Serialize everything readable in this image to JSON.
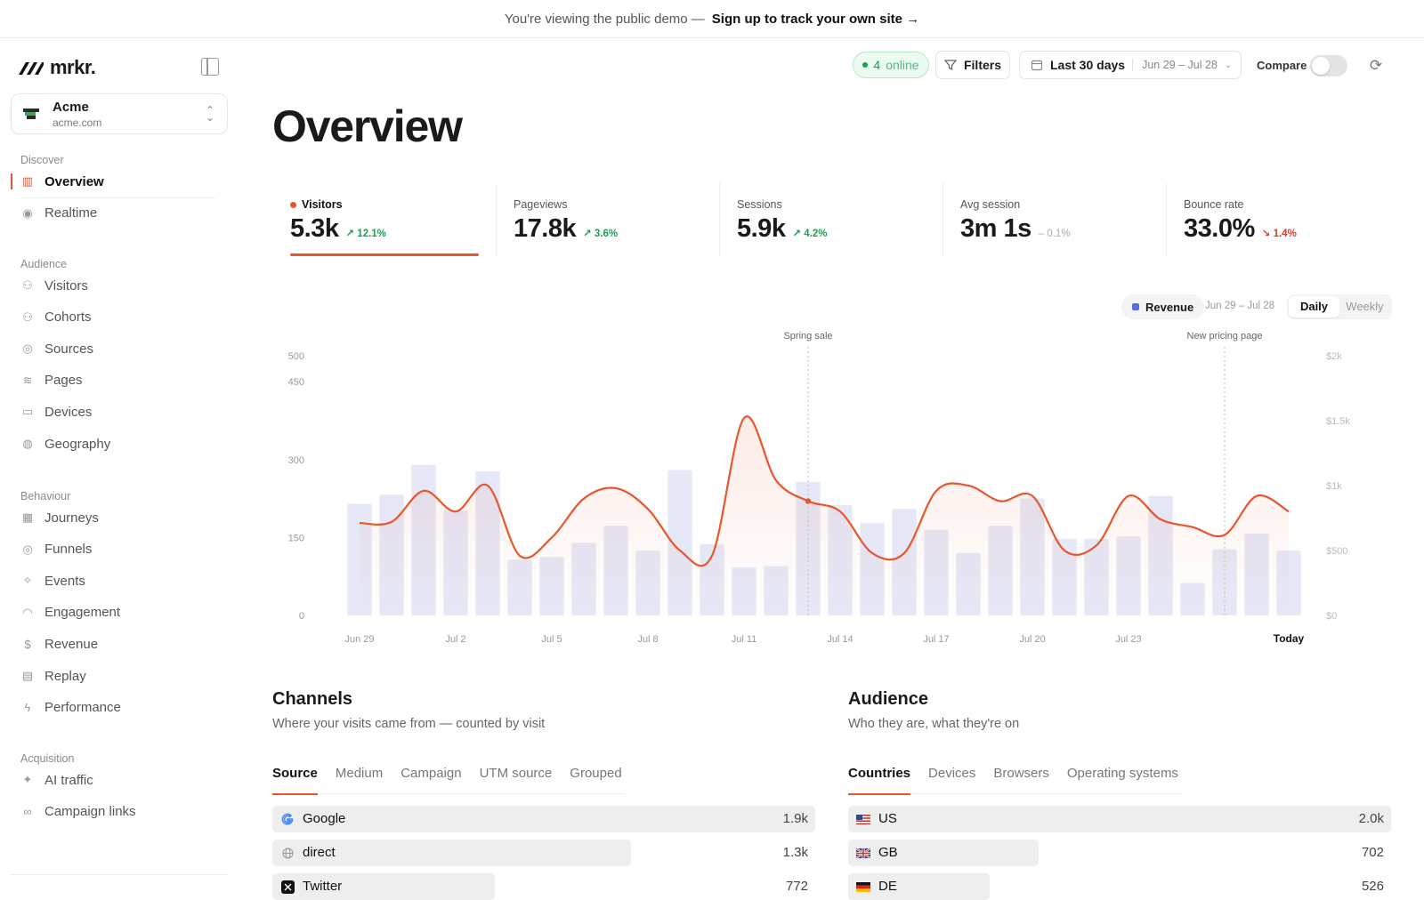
{
  "banner": {
    "text": "You're viewing the public demo —",
    "cta": "Sign up to track your own site →"
  },
  "brand": {
    "name": "mrkr."
  },
  "site": {
    "name": "Acme",
    "url": "acme.com"
  },
  "nav": {
    "sections": [
      {
        "label": "Discover",
        "items": [
          {
            "label": "Overview",
            "icon": "bar-chart-icon",
            "active": true
          },
          {
            "label": "Realtime",
            "icon": "broadcast-icon"
          }
        ]
      },
      {
        "label": "Audience",
        "items": [
          {
            "label": "Visitors",
            "icon": "users-icon"
          },
          {
            "label": "Cohorts",
            "icon": "user-group-icon"
          },
          {
            "label": "Sources",
            "icon": "compass-icon"
          },
          {
            "label": "Pages",
            "icon": "layers-icon"
          },
          {
            "label": "Devices",
            "icon": "devices-icon"
          },
          {
            "label": "Geography",
            "icon": "globe-icon"
          }
        ]
      },
      {
        "label": "Behaviour",
        "items": [
          {
            "label": "Journeys",
            "icon": "map-icon"
          },
          {
            "label": "Funnels",
            "icon": "target-icon"
          },
          {
            "label": "Events",
            "icon": "sparkle-icon"
          },
          {
            "label": "Engagement",
            "icon": "gauge-icon"
          },
          {
            "label": "Revenue",
            "icon": "dollar-icon"
          },
          {
            "label": "Replay",
            "icon": "film-icon"
          },
          {
            "label": "Performance",
            "icon": "bolt-icon"
          }
        ]
      },
      {
        "label": "Acquisition",
        "items": [
          {
            "label": "AI traffic",
            "icon": "stars-icon"
          },
          {
            "label": "Campaign links",
            "icon": "link-icon"
          }
        ]
      }
    ]
  },
  "topbar": {
    "online_count": "4",
    "online_label": "online",
    "filters": "Filters",
    "date_label": "Last 30 days",
    "date_range": "Jun 29 – Jul 28",
    "compare": "Compare"
  },
  "page": {
    "title": "Overview"
  },
  "metrics": [
    {
      "label": "Visitors",
      "value": "5.3k",
      "delta": "12.1%",
      "dir": "up"
    },
    {
      "label": "Pageviews",
      "value": "17.8k",
      "delta": "3.6%",
      "dir": "up"
    },
    {
      "label": "Sessions",
      "value": "5.9k",
      "delta": "4.2%",
      "dir": "up"
    },
    {
      "label": "Avg session",
      "value": "3m 1s",
      "delta": "0.1%",
      "dir": "flat"
    },
    {
      "label": "Bounce rate",
      "value": "33.0%",
      "delta": "1.4%",
      "dir": "down"
    }
  ],
  "chart_toolbar": {
    "revenue": "Revenue",
    "range": "Jun 29 – Jul 28",
    "daily": "Daily",
    "weekly": "Weekly"
  },
  "chart_data": {
    "type": "line",
    "x_ticks": [
      "Jun 29",
      "Jul 2",
      "Jul 5",
      "Jul 8",
      "Jul 11",
      "Jul 14",
      "Jul 17",
      "Jul 20",
      "Jul 23",
      "Today"
    ],
    "y_ticks": [
      0,
      150,
      300,
      450,
      500
    ],
    "y2_ticks": [
      "$0",
      "$500",
      "$1k",
      "$1.5k",
      "$2k"
    ],
    "ylim": [
      0,
      500
    ],
    "y2lim": [
      0,
      2000
    ],
    "annotations": [
      {
        "label": "Spring sale",
        "index": 14
      },
      {
        "label": "New pricing page",
        "index": 27
      }
    ],
    "series": [
      {
        "name": "Visitors",
        "type": "line",
        "color": "#e8562d",
        "values": [
          178,
          180,
          240,
          200,
          250,
          115,
          150,
          225,
          245,
          205,
          125,
          115,
          380,
          260,
          220,
          200,
          120,
          120,
          240,
          250,
          220,
          230,
          125,
          135,
          230,
          185,
          170,
          155,
          230,
          200
        ]
      },
      {
        "name": "Revenue",
        "type": "bar",
        "color": "#e6e8f7",
        "values": [
          860,
          930,
          1160,
          810,
          1110,
          430,
          450,
          560,
          690,
          500,
          1120,
          550,
          370,
          380,
          1030,
          850,
          710,
          820,
          660,
          480,
          690,
          900,
          590,
          590,
          610,
          920,
          250,
          510,
          630,
          500
        ]
      }
    ]
  },
  "channels": {
    "title": "Channels",
    "subtitle": "Where your visits came from — counted by visit",
    "tabs": [
      "Source",
      "Medium",
      "Campaign",
      "UTM source",
      "Grouped"
    ],
    "rows": [
      {
        "name": "Google",
        "value": "1.9k",
        "share": 1.0,
        "icon": "google-icon"
      },
      {
        "name": "direct",
        "value": "1.3k",
        "share": 0.66,
        "icon": "globe-icon"
      },
      {
        "name": "Twitter",
        "value": "772",
        "share": 0.41,
        "icon": "x-icon"
      }
    ]
  },
  "audience": {
    "title": "Audience",
    "subtitle": "Who they are, what they're on",
    "tabs": [
      "Countries",
      "Devices",
      "Browsers",
      "Operating systems"
    ],
    "rows": [
      {
        "name": "US",
        "value": "2.0k",
        "share": 1.0,
        "icon": "us-flag-icon"
      },
      {
        "name": "GB",
        "value": "702",
        "share": 0.35,
        "icon": "gb-flag-icon"
      },
      {
        "name": "DE",
        "value": "526",
        "share": 0.26,
        "icon": "de-flag-icon"
      }
    ]
  }
}
